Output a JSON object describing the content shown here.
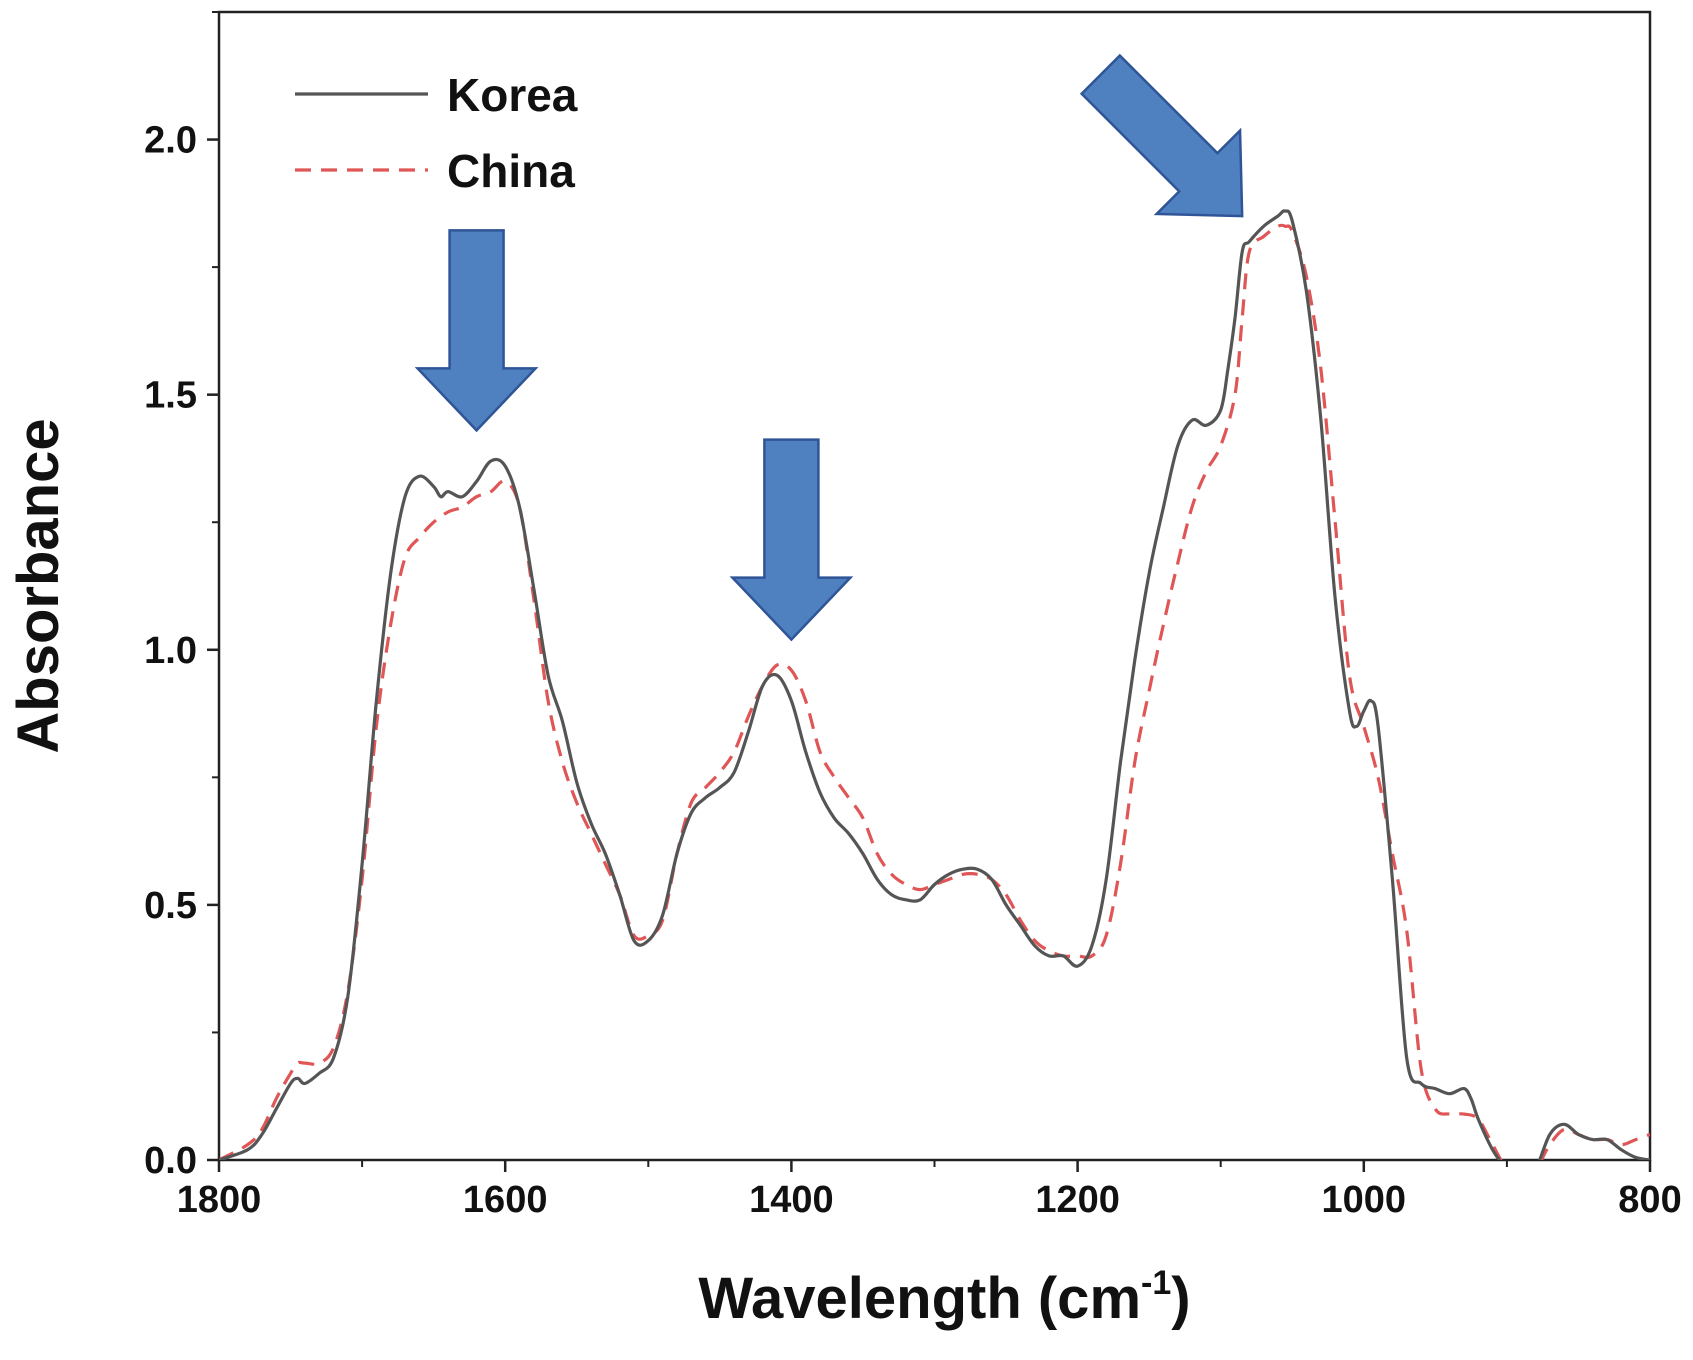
{
  "chart_data": {
    "type": "line",
    "title": "",
    "xlabel": "Wavelength (cm",
    "xlabel_superscript": "-1",
    "xlabel_close": ")",
    "ylabel": "Absorbance",
    "xlim": [
      1800,
      800
    ],
    "ylim": [
      0,
      2.25
    ],
    "x_reversed": true,
    "x_ticks": [
      1800,
      1600,
      1400,
      1200,
      1000,
      800
    ],
    "x_tick_labels": [
      "1800",
      "1600",
      "1400",
      "1200",
      "1000",
      "800"
    ],
    "y_ticks": [
      0,
      0.5,
      1,
      1.5,
      2
    ],
    "y_tick_labels": [
      "0.0",
      "0.5",
      "1.0",
      "1.5",
      "2.0"
    ],
    "grid": false,
    "legend_position": "top-left",
    "series": [
      {
        "name": "Korea",
        "color": "#555555",
        "dash": "solid",
        "x": [
          1800,
          1780,
          1770,
          1760,
          1750,
          1745,
          1740,
          1730,
          1720,
          1710,
          1700,
          1690,
          1680,
          1670,
          1660,
          1650,
          1645,
          1640,
          1630,
          1620,
          1610,
          1600,
          1590,
          1580,
          1570,
          1560,
          1550,
          1540,
          1530,
          1520,
          1510,
          1500,
          1490,
          1480,
          1470,
          1460,
          1450,
          1440,
          1430,
          1420,
          1410,
          1400,
          1390,
          1380,
          1370,
          1360,
          1350,
          1340,
          1330,
          1320,
          1310,
          1300,
          1290,
          1280,
          1270,
          1260,
          1250,
          1240,
          1230,
          1220,
          1210,
          1200,
          1190,
          1180,
          1170,
          1160,
          1150,
          1140,
          1130,
          1120,
          1110,
          1100,
          1095,
          1090,
          1085,
          1080,
          1070,
          1060,
          1055,
          1050,
          1040,
          1030,
          1020,
          1010,
          1005,
          1000,
          995,
          990,
          980,
          970,
          960,
          950,
          940,
          930,
          925,
          920,
          910,
          900,
          890,
          880,
          870,
          860,
          850,
          840,
          830,
          820,
          810,
          800
        ],
        "y": [
          0.0,
          0.02,
          0.05,
          0.1,
          0.15,
          0.16,
          0.15,
          0.17,
          0.2,
          0.32,
          0.58,
          0.9,
          1.15,
          1.3,
          1.34,
          1.32,
          1.3,
          1.31,
          1.3,
          1.33,
          1.37,
          1.36,
          1.28,
          1.12,
          0.95,
          0.86,
          0.74,
          0.66,
          0.6,
          0.52,
          0.43,
          0.43,
          0.48,
          0.6,
          0.68,
          0.71,
          0.73,
          0.76,
          0.84,
          0.93,
          0.95,
          0.9,
          0.8,
          0.72,
          0.67,
          0.64,
          0.6,
          0.55,
          0.52,
          0.51,
          0.51,
          0.54,
          0.56,
          0.57,
          0.57,
          0.55,
          0.5,
          0.46,
          0.42,
          0.4,
          0.4,
          0.38,
          0.42,
          0.55,
          0.78,
          0.98,
          1.15,
          1.28,
          1.4,
          1.45,
          1.44,
          1.47,
          1.55,
          1.65,
          1.78,
          1.8,
          1.83,
          1.85,
          1.86,
          1.84,
          1.7,
          1.45,
          1.1,
          0.88,
          0.85,
          0.88,
          0.9,
          0.85,
          0.55,
          0.2,
          0.15,
          0.14,
          0.13,
          0.14,
          0.12,
          0.08,
          0.02,
          -0.02,
          -0.06,
          -0.02,
          0.05,
          0.07,
          0.05,
          0.04,
          0.04,
          0.02,
          0.005,
          0.0
        ]
      },
      {
        "name": "China",
        "color": "#e05555",
        "dash": "dashed",
        "x": [
          1800,
          1780,
          1770,
          1760,
          1750,
          1745,
          1740,
          1730,
          1720,
          1710,
          1700,
          1690,
          1680,
          1670,
          1660,
          1650,
          1640,
          1630,
          1620,
          1610,
          1600,
          1590,
          1580,
          1570,
          1560,
          1550,
          1540,
          1530,
          1520,
          1510,
          1500,
          1490,
          1480,
          1470,
          1460,
          1450,
          1440,
          1430,
          1420,
          1410,
          1400,
          1390,
          1380,
          1370,
          1360,
          1350,
          1340,
          1330,
          1320,
          1310,
          1300,
          1290,
          1280,
          1270,
          1260,
          1250,
          1240,
          1230,
          1220,
          1210,
          1200,
          1190,
          1180,
          1170,
          1160,
          1150,
          1140,
          1130,
          1120,
          1110,
          1100,
          1090,
          1085,
          1080,
          1070,
          1060,
          1055,
          1050,
          1040,
          1030,
          1020,
          1010,
          1000,
          990,
          980,
          970,
          960,
          950,
          940,
          930,
          920,
          910,
          900,
          890,
          880,
          870,
          860,
          850,
          840,
          830,
          820,
          810,
          800
        ],
        "y": [
          0.0,
          0.03,
          0.06,
          0.12,
          0.17,
          0.19,
          0.19,
          0.19,
          0.22,
          0.33,
          0.55,
          0.85,
          1.05,
          1.18,
          1.22,
          1.25,
          1.27,
          1.28,
          1.3,
          1.31,
          1.33,
          1.28,
          1.1,
          0.9,
          0.78,
          0.7,
          0.64,
          0.58,
          0.52,
          0.44,
          0.44,
          0.47,
          0.6,
          0.7,
          0.73,
          0.76,
          0.8,
          0.87,
          0.93,
          0.97,
          0.96,
          0.9,
          0.8,
          0.75,
          0.71,
          0.67,
          0.6,
          0.56,
          0.54,
          0.53,
          0.54,
          0.55,
          0.56,
          0.56,
          0.55,
          0.52,
          0.47,
          0.43,
          0.41,
          0.4,
          0.4,
          0.4,
          0.44,
          0.58,
          0.78,
          0.92,
          1.05,
          1.17,
          1.28,
          1.35,
          1.4,
          1.5,
          1.65,
          1.78,
          1.81,
          1.83,
          1.83,
          1.82,
          1.73,
          1.55,
          1.25,
          0.95,
          0.85,
          0.75,
          0.6,
          0.45,
          0.18,
          0.1,
          0.09,
          0.09,
          0.08,
          0.03,
          -0.02,
          -0.05,
          -0.02,
          0.03,
          0.06,
          0.05,
          0.04,
          0.04,
          0.03,
          0.04,
          0.05
        ]
      }
    ],
    "annotations": [
      {
        "kind": "arrow",
        "direction": "down",
        "target_x": 1620,
        "target_y": 1.43
      },
      {
        "kind": "arrow",
        "direction": "down",
        "target_x": 1400,
        "target_y": 1.02
      },
      {
        "kind": "arrow",
        "direction": "down-right",
        "target_x": 1085,
        "target_y": 1.85
      }
    ],
    "annotation_color": "#4f80bf",
    "annotation_stroke": "#2f5597"
  }
}
